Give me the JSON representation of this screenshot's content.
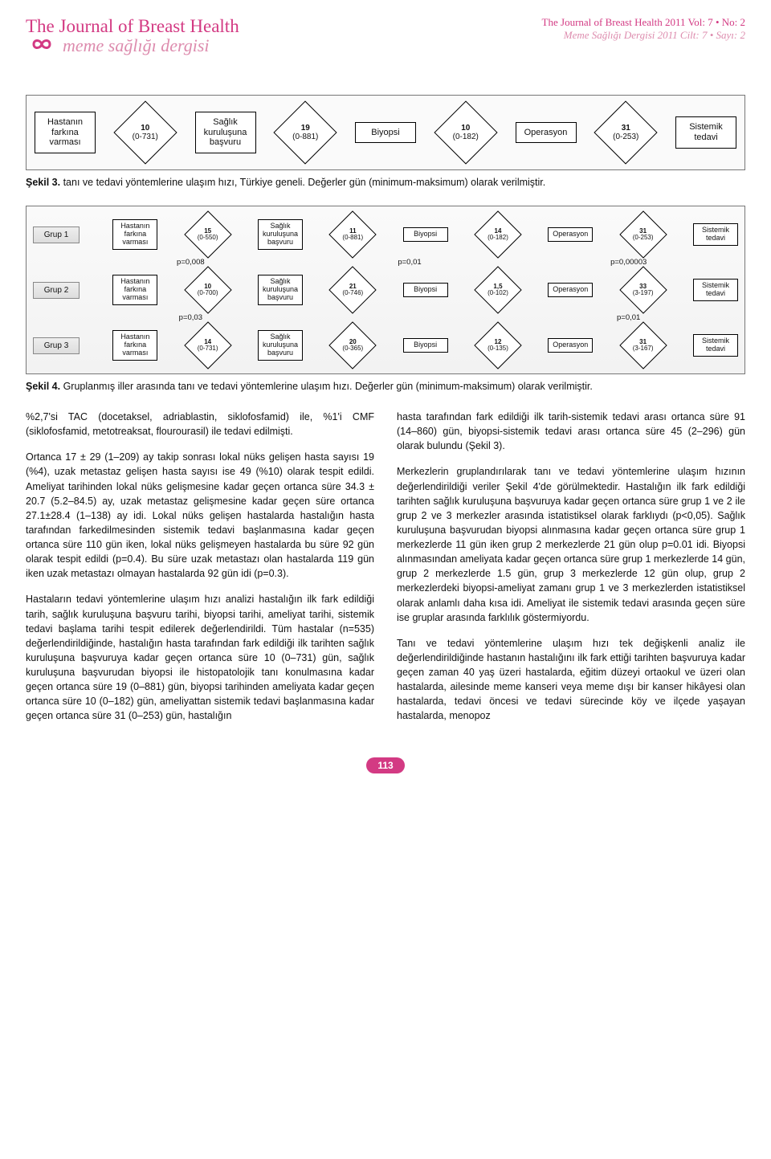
{
  "header": {
    "title_en": "The Journal of Breast Health",
    "title_tr": "meme sağlığı dergisi",
    "right_en": "The Journal of Breast Health 2011 Vol: 7 • No: 2",
    "right_tr": "Meme Sağlığı Dergisi 2011 Cilt: 7 • Sayı: 2"
  },
  "fig3": {
    "stages": [
      {
        "label": "Hastanın farkına varması",
        "value": "10",
        "range": "(0-731)"
      },
      {
        "label": "Sağlık kuruluşuna başvuru",
        "value": "19",
        "range": "(0-881)"
      },
      {
        "label": "Biyopsi",
        "value": "10",
        "range": "(0-182)"
      },
      {
        "label": "Operasyon",
        "value": "31",
        "range": "(0-253)"
      },
      {
        "label": "Sistemik tedavi",
        "value": "",
        "range": ""
      }
    ],
    "caption_label": "Şekil 3.",
    "caption_text": "tanı ve tedavi yöntemlerine ulaşım hızı, Türkiye geneli. Değerler gün (minimum-maksimum) olarak verilmiştir."
  },
  "fig4": {
    "rows": [
      {
        "group": "Grup 1",
        "stages": [
          {
            "label": "Hastanın farkına varması",
            "value": "15",
            "range": "(0-550)"
          },
          {
            "label": "Sağlık kuruluşuna başvuru",
            "value": "11",
            "range": "(0-881)"
          },
          {
            "label": "Biyopsi",
            "value": "14",
            "range": "(0-182)"
          },
          {
            "label": "Operasyon",
            "value": "31",
            "range": "(0-253)"
          },
          {
            "label": "Sistemik tedavi",
            "value": "",
            "range": ""
          }
        ]
      },
      {
        "group": "Grup 2",
        "stages": [
          {
            "label": "Hastanın farkına varması",
            "value": "10",
            "range": "(0-700)"
          },
          {
            "label": "Sağlık kuruluşuna başvuru",
            "value": "21",
            "range": "(0-746)"
          },
          {
            "label": "Biyopsi",
            "value": "1,5",
            "range": "(0-102)"
          },
          {
            "label": "Operasyon",
            "value": "33",
            "range": "(3-197)"
          },
          {
            "label": "Sistemik tedavi",
            "value": "",
            "range": ""
          }
        ]
      },
      {
        "group": "Grup 3",
        "stages": [
          {
            "label": "Hastanın farkına varması",
            "value": "14",
            "range": "(0-731)"
          },
          {
            "label": "Sağlık kuruluşuna başvuru",
            "value": "20",
            "range": "(0-365)"
          },
          {
            "label": "Biyopsi",
            "value": "12",
            "range": "(0-135)"
          },
          {
            "label": "Operasyon",
            "value": "31",
            "range": "(3-167)"
          },
          {
            "label": "Sistemik tedavi",
            "value": "",
            "range": ""
          }
        ]
      }
    ],
    "p_rows": [
      [
        "p=0,008",
        "p=0,01",
        "p=0,00003"
      ],
      [
        "p=0,03",
        "",
        "p=0,01"
      ]
    ],
    "caption_label": "Şekil 4.",
    "caption_text": "Gruplanmış iller arasında tanı ve tedavi yöntemlerine ulaşım hızı. Değerler gün (minimum-maksimum) olarak verilmiştir."
  },
  "body": {
    "left": [
      "%2,7'si TAC (docetaksel, adriablastin, siklofosfamid) ile, %1'i CMF (siklofosfamid, metotreaksat, flourourasil) ile tedavi edilmişti.",
      "Ortanca 17 ± 29 (1–209) ay takip sonrası lokal nüks gelişen hasta sayısı 19 (%4), uzak metastaz gelişen hasta sayısı ise 49 (%10) olarak tespit edildi. Ameliyat tarihinden lokal nüks gelişmesine kadar geçen ortanca süre 34.3 ± 20.7 (5.2–84.5) ay, uzak metastaz gelişmesine kadar geçen süre ortanca 27.1±28.4 (1–138) ay idi. Lokal nüks gelişen hastalarda hastalığın hasta tarafından farkedilmesinden sistemik tedavi başlanmasına kadar geçen ortanca süre 110 gün iken, lokal nüks gelişmeyen hastalarda bu süre 92 gün olarak tespit edildi (p=0.4). Bu süre uzak metastazı olan hastalarda 119 gün iken uzak metastazı olmayan hastalarda 92 gün idi (p=0.3).",
      "Hastaların tedavi yöntemlerine ulaşım hızı analizi hastalığın ilk fark edildiği tarih, sağlık kuruluşuna başvuru tarihi, biyopsi tarihi, ameliyat tarihi, sistemik tedavi başlama tarihi tespit edilerek değerlendirildi. Tüm hastalar (n=535) değerlendirildiğinde, hastalığın hasta tarafından fark edildiği ilk tarihten sağlık kuruluşuna başvuruya kadar geçen ortanca süre 10 (0–731) gün, sağlık kuruluşuna başvurudan biyopsi ile histopatolojik tanı konulmasına kadar geçen ortanca süre 19 (0–881) gün, biyopsi tarihinden ameliyata kadar geçen ortanca süre 10 (0–182) gün, ameliyattan sistemik tedavi başlanmasına kadar geçen ortanca süre 31 (0–253) gün, hastalığın"
    ],
    "right": [
      "hasta tarafından fark edildiği ilk tarih-sistemik tedavi arası ortanca süre 91 (14–860) gün, biyopsi-sistemik tedavi arası ortanca süre 45 (2–296) gün olarak bulundu (Şekil 3).",
      "Merkezlerin gruplandırılarak tanı ve tedavi yöntemlerine ulaşım hızının değerlendirildiği veriler Şekil 4'de görülmektedir. Hastalığın ilk fark edildiği tarihten sağlık kuruluşuna başvuruya kadar geçen ortanca süre grup 1 ve 2 ile grup 2 ve 3 merkezler arasında istatistiksel olarak farklıydı (p<0,05). Sağlık kuruluşuna başvurudan biyopsi alınmasına kadar geçen ortanca süre grup 1 merkezlerde 11 gün iken grup 2 merkezlerde 21 gün olup p=0.01 idi. Biyopsi alınmasından ameliyata kadar geçen ortanca süre grup 1 merkezlerde 14 gün, grup 2 merkezlerde 1.5 gün, grup 3 merkezlerde 12 gün olup, grup 2 merkezlerdeki biyopsi-ameliyat zamanı grup 1 ve 3 merkezlerden istatistiksel olarak anlamlı daha kısa idi. Ameliyat ile sistemik tedavi arasında geçen süre ise gruplar arasında farklılık göstermiyordu.",
      "Tanı ve tedavi yöntemlerine ulaşım hızı tek değişkenli analiz ile değerlendirildiğinde hastanın hastalığını ilk fark ettiği tarihten başvuruya kadar geçen zaman 40 yaş üzeri hastalarda, eğitim düzeyi ortaokul ve üzeri olan hastalarda, ailesinde meme kanseri veya meme dışı bir kanser hikâyesi olan hastalarda, tedavi öncesi ve tedavi sürecinde köy ve ilçede yaşayan hastalarda, menopoz"
    ]
  },
  "page": "113",
  "colors": {
    "accent": "#d33a83",
    "accent_light": "#dd8cae"
  }
}
